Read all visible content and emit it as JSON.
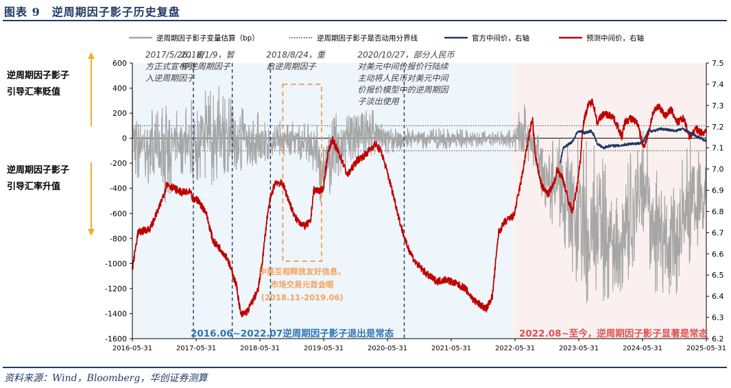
{
  "figure": {
    "title": "图表 9　逆周期因子影子历史复盘",
    "source": "资料来源：Wind，Bloomberg，华创证券测算"
  },
  "colors": {
    "shadow": "#a6a6a6",
    "official": "#1f3864",
    "predicted": "#c00000",
    "threshold": "#404040",
    "phase1_bg": "#eef6fc",
    "phase2_bg": "#fbf0f0",
    "vline": "#1f3864",
    "orange": "#f4a15a",
    "phase1_text": "#2e75b6",
    "phase2_text": "#e05050",
    "axis_arrow": "#f0b020"
  },
  "chart_data": {
    "type": "line",
    "title": "逆周期因子影子历史复盘",
    "legend": [
      "逆周期因子影子变量估算（bp）",
      "逆周期因子影子是否动用分界线",
      "官方中间价，右轴",
      "预测中间价，右轴"
    ],
    "legend_position": "top",
    "x_ticks": [
      "2016-05-31",
      "2017-05-31",
      "2018-05-31",
      "2019-05-31",
      "2020-05-31",
      "2021-05-31",
      "2022-05-31",
      "2023-05-31",
      "2024-05-31",
      "2025-05-31"
    ],
    "x_range": [
      2016.41,
      2025.72
    ],
    "y_left": {
      "range": [
        -1600,
        600
      ],
      "ticks": [
        600,
        400,
        200,
        0,
        -200,
        -400,
        -600,
        -800,
        -1000,
        -1200,
        -1400,
        -1600
      ]
    },
    "y_right": {
      "range": [
        6.2,
        7.5
      ],
      "ticks": [
        7.5,
        7.4,
        7.3,
        7.2,
        7.1,
        7.0,
        6.9,
        6.8,
        6.7,
        6.6,
        6.5,
        6.4,
        6.3,
        6.2
      ]
    },
    "threshold_lines_bp": [
      100,
      -100
    ],
    "predicted_fixing_keypoints": [
      [
        2016.41,
        6.53
      ],
      [
        2016.5,
        6.7
      ],
      [
        2016.7,
        6.72
      ],
      [
        2016.85,
        6.82
      ],
      [
        2016.97,
        6.93
      ],
      [
        2017.2,
        6.89
      ],
      [
        2017.35,
        6.89
      ],
      [
        2017.4,
        6.85
      ],
      [
        2017.45,
        6.86
      ],
      [
        2017.6,
        6.8
      ],
      [
        2017.72,
        6.66
      ],
      [
        2017.85,
        6.62
      ],
      [
        2017.95,
        6.58
      ],
      [
        2018.1,
        6.45
      ],
      [
        2018.17,
        6.31
      ],
      [
        2018.28,
        6.33
      ],
      [
        2018.45,
        6.43
      ],
      [
        2018.52,
        6.57
      ],
      [
        2018.6,
        6.78
      ],
      [
        2018.65,
        6.86
      ],
      [
        2018.73,
        6.94
      ],
      [
        2018.85,
        6.93
      ],
      [
        2018.95,
        6.85
      ],
      [
        2019.05,
        6.77
      ],
      [
        2019.2,
        6.73
      ],
      [
        2019.3,
        6.75
      ],
      [
        2019.35,
        6.9
      ],
      [
        2019.5,
        6.9
      ],
      [
        2019.58,
        7.07
      ],
      [
        2019.65,
        7.14
      ],
      [
        2019.8,
        7.05
      ],
      [
        2019.9,
        6.97
      ],
      [
        2020.05,
        7.04
      ],
      [
        2020.2,
        7.07
      ],
      [
        2020.35,
        7.12
      ],
      [
        2020.45,
        7.08
      ],
      [
        2020.55,
        6.98
      ],
      [
        2020.65,
        6.87
      ],
      [
        2020.75,
        6.75
      ],
      [
        2020.85,
        6.65
      ],
      [
        2021.0,
        6.56
      ],
      [
        2021.1,
        6.53
      ],
      [
        2021.2,
        6.5
      ],
      [
        2021.35,
        6.47
      ],
      [
        2021.5,
        6.48
      ],
      [
        2021.65,
        6.46
      ],
      [
        2021.8,
        6.44
      ],
      [
        2021.95,
        6.38
      ],
      [
        2022.05,
        6.36
      ],
      [
        2022.15,
        6.34
      ],
      [
        2022.25,
        6.4
      ],
      [
        2022.35,
        6.7
      ],
      [
        2022.45,
        6.75
      ],
      [
        2022.6,
        6.78
      ],
      [
        2022.72,
        6.95
      ],
      [
        2022.82,
        7.12
      ],
      [
        2022.9,
        7.24
      ],
      [
        2022.95,
        7.05
      ],
      [
        2023.05,
        6.92
      ],
      [
        2023.15,
        6.88
      ],
      [
        2023.25,
        6.93
      ],
      [
        2023.3,
        7.0
      ],
      [
        2023.4,
        6.95
      ],
      [
        2023.48,
        6.85
      ],
      [
        2023.55,
        6.8
      ],
      [
        2023.62,
        6.91
      ],
      [
        2023.68,
        7.05
      ],
      [
        2023.72,
        7.21
      ],
      [
        2023.8,
        7.3
      ],
      [
        2023.88,
        7.32
      ],
      [
        2023.95,
        7.22
      ],
      [
        2024.05,
        7.26
      ],
      [
        2024.2,
        7.25
      ],
      [
        2024.3,
        7.19
      ],
      [
        2024.35,
        7.15
      ],
      [
        2024.4,
        7.22
      ],
      [
        2024.5,
        7.24
      ],
      [
        2024.6,
        7.22
      ],
      [
        2024.7,
        7.1
      ],
      [
        2024.78,
        7.17
      ],
      [
        2024.85,
        7.26
      ],
      [
        2024.95,
        7.3
      ],
      [
        2025.05,
        7.25
      ],
      [
        2025.15,
        7.28
      ],
      [
        2025.25,
        7.22
      ],
      [
        2025.35,
        7.24
      ],
      [
        2025.45,
        7.15
      ],
      [
        2025.55,
        7.19
      ],
      [
        2025.65,
        7.17
      ],
      [
        2025.72,
        7.18
      ]
    ],
    "official_fixing_keypoints": [
      [
        2016.41,
        6.56
      ],
      [
        2016.5,
        6.68
      ],
      [
        2016.7,
        6.7
      ],
      [
        2016.85,
        6.83
      ],
      [
        2016.97,
        6.93
      ],
      [
        2017.2,
        6.89
      ],
      [
        2017.35,
        6.88
      ],
      [
        2017.45,
        6.85
      ],
      [
        2017.72,
        6.64
      ],
      [
        2017.95,
        6.58
      ],
      [
        2018.1,
        6.45
      ],
      [
        2018.17,
        6.31
      ],
      [
        2018.28,
        6.33
      ],
      [
        2018.52,
        6.57
      ],
      [
        2018.65,
        6.85
      ],
      [
        2018.73,
        6.92
      ],
      [
        2018.95,
        6.87
      ],
      [
        2019.05,
        6.77
      ],
      [
        2019.2,
        6.72
      ],
      [
        2019.35,
        6.86
      ],
      [
        2019.5,
        6.89
      ],
      [
        2019.65,
        7.08
      ],
      [
        2019.8,
        7.05
      ],
      [
        2020.05,
        6.98
      ],
      [
        2020.2,
        7.04
      ],
      [
        2020.35,
        7.1
      ],
      [
        2020.55,
        7.0
      ],
      [
        2020.75,
        6.78
      ],
      [
        2021.0,
        6.53
      ],
      [
        2021.35,
        6.47
      ],
      [
        2021.65,
        6.46
      ],
      [
        2021.95,
        6.37
      ],
      [
        2022.15,
        6.34
      ],
      [
        2022.35,
        6.66
      ],
      [
        2022.6,
        6.76
      ],
      [
        2022.72,
        6.93
      ],
      [
        2022.82,
        7.1
      ],
      [
        2022.9,
        7.22
      ],
      [
        2022.95,
        7.02
      ],
      [
        2023.05,
        6.9
      ],
      [
        2023.25,
        6.89
      ],
      [
        2023.4,
        7.1
      ],
      [
        2023.55,
        7.13
      ],
      [
        2023.62,
        7.17
      ],
      [
        2023.68,
        7.18
      ],
      [
        2023.75,
        7.17
      ],
      [
        2023.85,
        7.18
      ],
      [
        2023.9,
        7.16
      ],
      [
        2023.95,
        7.12
      ],
      [
        2024.05,
        7.1
      ],
      [
        2024.15,
        7.11
      ],
      [
        2024.3,
        7.11
      ],
      [
        2024.5,
        7.12
      ],
      [
        2024.6,
        7.12
      ],
      [
        2024.7,
        7.13
      ],
      [
        2024.78,
        7.18
      ],
      [
        2024.85,
        7.18
      ],
      [
        2025.0,
        7.19
      ],
      [
        2025.2,
        7.18
      ],
      [
        2025.35,
        7.19
      ],
      [
        2025.45,
        7.17
      ],
      [
        2025.6,
        7.15
      ],
      [
        2025.72,
        7.13
      ]
    ],
    "official_visible_from": 2023.35,
    "shadow_range_keypoints": [
      [
        2016.41,
        -450,
        450
      ],
      [
        2016.6,
        -300,
        250
      ],
      [
        2016.9,
        -550,
        300
      ],
      [
        2017.2,
        -300,
        250
      ],
      [
        2017.5,
        -350,
        360
      ],
      [
        2017.8,
        -400,
        430
      ],
      [
        2018.0,
        -300,
        330
      ],
      [
        2018.3,
        -250,
        250
      ],
      [
        2018.7,
        -150,
        150
      ],
      [
        2019.0,
        -150,
        130
      ],
      [
        2019.3,
        -250,
        200
      ],
      [
        2019.5,
        -600,
        150
      ],
      [
        2019.7,
        -400,
        250
      ],
      [
        2019.9,
        -180,
        180
      ],
      [
        2020.3,
        -160,
        230
      ],
      [
        2020.6,
        -120,
        120
      ],
      [
        2020.9,
        -80,
        80
      ],
      [
        2021.5,
        -90,
        80
      ],
      [
        2022.0,
        -70,
        70
      ],
      [
        2022.5,
        -90,
        70
      ],
      [
        2022.8,
        -150,
        300
      ],
      [
        2023.0,
        -400,
        80
      ],
      [
        2023.3,
        -800,
        40
      ],
      [
        2023.5,
        -1000,
        30
      ],
      [
        2023.7,
        -1300,
        0
      ],
      [
        2023.9,
        -1450,
        -50
      ],
      [
        2024.1,
        -1300,
        -200
      ],
      [
        2024.3,
        -1300,
        -500
      ],
      [
        2024.5,
        -1100,
        -100
      ],
      [
        2024.7,
        -800,
        100
      ],
      [
        2024.9,
        -1300,
        -200
      ],
      [
        2025.1,
        -1400,
        -400
      ],
      [
        2025.3,
        -1200,
        -200
      ],
      [
        2025.5,
        -1000,
        100
      ],
      [
        2025.72,
        -700,
        -200
      ]
    ],
    "event_lines": [
      {
        "date": 2017.4,
        "label": "2017/5/26，官方正式宣布引入逆周期因子"
      },
      {
        "date": 2018.03,
        "label": "2018/1/9，暂停逆周期因子"
      },
      {
        "date": 2018.65,
        "label": "2018/8/24，重启逆周期因子"
      },
      {
        "date": 2020.82,
        "label": "2020/10/27，部分人民币对美元中间价报价行陆续主动将人民币对美元中间价报价模型中的逆周期因子淡出使用"
      }
    ],
    "event_label_lines": [
      [
        "2017/5/26，官",
        "方正式宣布引",
        "入逆周期因子"
      ],
      [
        "2018/1/9，暂",
        "停逆周期因子"
      ],
      [
        "2018/8/24，重",
        "启逆周期因子"
      ],
      [
        "2020/10/27，部分人民币",
        "对美元中间价报价行陆续",
        "主动将人民币对美元中间",
        "价报价模型中的逆周期因",
        "子淡出使用"
      ]
    ],
    "highlight_box": {
      "start": 2018.85,
      "end": 2019.48,
      "lines": [
        "中美互相释放友好信息，",
        "市场交易元首会晤",
        "(2018.11-2019.06)"
      ]
    },
    "phases": [
      {
        "start": 2016.41,
        "end": 2022.58,
        "label": "2016.06~2022.07逆周期因子影子退出是常态"
      },
      {
        "start": 2022.58,
        "end": 2025.72,
        "label": "2022.08~至今，逆周期因子影子显著是常态"
      }
    ],
    "side_labels": {
      "depreciation": [
        "逆周期因子影子",
        "引导汇率贬值"
      ],
      "appreciation": [
        "逆周期因子影子",
        "引导汇率升值"
      ]
    }
  }
}
